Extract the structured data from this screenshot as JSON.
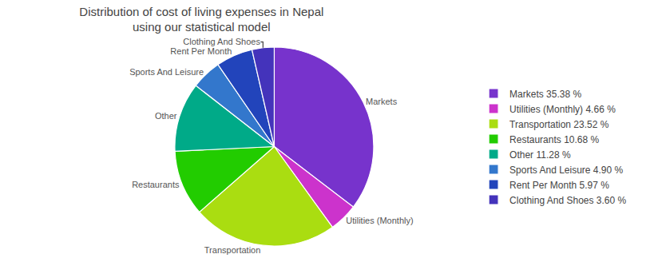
{
  "chart_data": {
    "type": "pie",
    "title": "Distribution of cost of living expenses in Nepal\nusing our statistical model",
    "categories": [
      "Markets",
      "Utilities (Monthly)",
      "Transportation",
      "Restaurants",
      "Other",
      "Sports And Leisure",
      "Rent Per Month",
      "Clothing And Shoes"
    ],
    "values": [
      35.38,
      4.66,
      23.52,
      10.68,
      11.28,
      4.9,
      5.97,
      3.6
    ],
    "value_labels": [
      "Markets 35.38 %",
      "Utilities (Monthly) 4.66 %",
      "Transportation 23.52 %",
      "Restaurants 10.68 %",
      "Other 11.28 %",
      "Sports And Leisure 4.90 %",
      "Rent Per Month 5.97 %",
      "Clothing And Shoes 3.60 %"
    ],
    "colors": [
      "#7733cc",
      "#cc33cc",
      "#aadd11",
      "#22cc00",
      "#00aa88",
      "#3377cc",
      "#2244bb",
      "#4433bb"
    ],
    "legend": "right"
  }
}
